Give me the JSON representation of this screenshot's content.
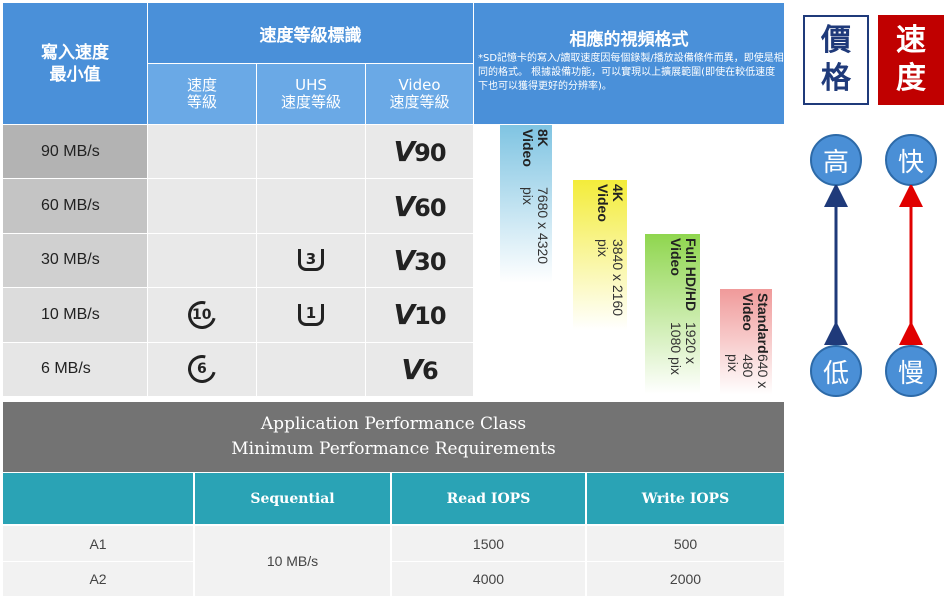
{
  "speed_table": {
    "header_write_min": "寫入速度\n最小值",
    "header_speed_class_group": "速度等級標識",
    "header_video_formats": "相應的視頻格式",
    "sub_speed": "速度\n等級",
    "sub_uhs": "UHS\n速度等級",
    "sub_video": "Video\n速度等級",
    "note": "*SD記憶卡的寫入/讀取速度因每個錄製/播放設備條件而異，即使是相同的格式。 根據設備功能，可以實現以上擴展範圍(即使在較低速度下也可以獲得更好的分辨率)。",
    "rows": [
      {
        "speed": "90 MB/s",
        "class": "",
        "uhs": "",
        "video": "90"
      },
      {
        "speed": "60 MB/s",
        "class": "",
        "uhs": "",
        "video": "60"
      },
      {
        "speed": "30 MB/s",
        "class": "",
        "uhs": "3",
        "video": "30"
      },
      {
        "speed": "10 MB/s",
        "class": "10",
        "uhs": "1",
        "video": "10"
      },
      {
        "speed": "6 MB/s",
        "class": "6",
        "uhs": "",
        "video": "6"
      }
    ],
    "video_formats": [
      {
        "name": "8K Video",
        "res": "7680 x 4320 pix",
        "color": "#9fd3ea"
      },
      {
        "name": "4K Video",
        "res": "3840 x 2160 pix",
        "color": "#e8e04a"
      },
      {
        "name": "Full HD/HD Video",
        "res": "1920 x 1080 pix",
        "color": "#9bd66a"
      },
      {
        "name": "Standard Video",
        "res": "640 x 480 pix",
        "color": "#f2a3a3"
      }
    ]
  },
  "app_table": {
    "title_line1": "Application Performance Class",
    "title_line2": "Minimum Performance Requirements",
    "col_sequential": "Sequential",
    "col_read": "Read IOPS",
    "col_write": "Write IOPS",
    "rows": [
      {
        "name": "A1",
        "read": "1500",
        "write": "500"
      },
      {
        "name": "A2",
        "read": "4000",
        "write": "2000"
      }
    ],
    "sequential_value": "10 MB/s"
  },
  "legend": {
    "price_label": "價\n格",
    "speed_label": "速\n度",
    "high": "高",
    "low": "低",
    "fast": "快",
    "slow": "慢",
    "price_color": "#1f3a7a",
    "speed_color": "#c00000"
  }
}
